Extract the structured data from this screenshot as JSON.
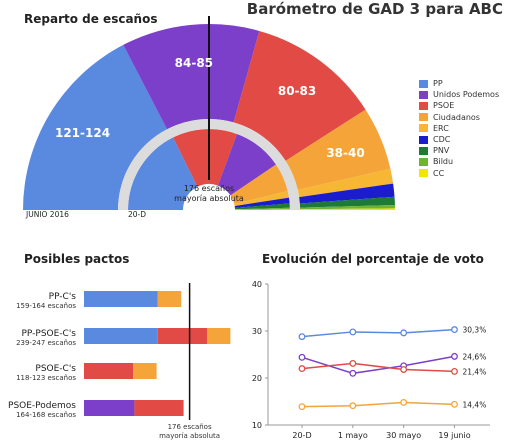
{
  "header": {
    "title": "Barómetro de GAD 3 para ABC"
  },
  "parliament": {
    "section_title": "Reparto de escaños",
    "outer_labels": [
      "121-124",
      "84-85",
      "80-83",
      "38-40"
    ],
    "center_label_line1": "176 escaños",
    "center_label_line2": "mayoría absoluta",
    "inner_left_label": "JUNIO 2016",
    "inner_right_label": "20-D"
  },
  "legend": [
    {
      "label": "PP",
      "color": "#5a89e0"
    },
    {
      "label": "Unidos Podemos",
      "color": "#7b3fc9"
    },
    {
      "label": "PSOE",
      "color": "#e24b45"
    },
    {
      "label": "Ciudadanos",
      "color": "#f5a43a"
    },
    {
      "label": "ERC",
      "color": "#f7b734"
    },
    {
      "label": "CDC",
      "color": "#1c1ccf"
    },
    {
      "label": "PNV",
      "color": "#1d7a37"
    },
    {
      "label": "Bildu",
      "color": "#6eb236"
    },
    {
      "label": "CC",
      "color": "#f2e600"
    }
  ],
  "pacts": {
    "section_title": "Posibles pactos",
    "rows": [
      {
        "name": "PP-C's",
        "seats": "159-164 escaños"
      },
      {
        "name": "PP-PSOE-C's",
        "seats": "239-247 escaños"
      },
      {
        "name": "PSOE-C's",
        "seats": "118-123 escaños"
      },
      {
        "name": "PSOE-Podemos",
        "seats": "164-168 escaños"
      }
    ],
    "majority_line1": "176 escaños",
    "majority_line2": "mayoría absoluta"
  },
  "evolution": {
    "section_title": "Evolución del porcentaje de voto"
  },
  "chart_data": [
    {
      "type": "pie",
      "title": "Reparto de escaños",
      "note": "semicircle parliament chart; outer ring = June 2016, inner ring = 20-D",
      "outer_ring": [
        {
          "party": "PP",
          "seats": 122.5,
          "label": "121-124",
          "color": "#5a89e0"
        },
        {
          "party": "Unidos Podemos",
          "seats": 84.5,
          "label": "84-85",
          "color": "#7b3fc9"
        },
        {
          "party": "PSOE",
          "seats": 81.5,
          "label": "80-83",
          "color": "#e24b45"
        },
        {
          "party": "Ciudadanos",
          "seats": 39,
          "label": "38-40",
          "color": "#f5a43a"
        },
        {
          "party": "ERC",
          "seats": 9,
          "color": "#f7b734"
        },
        {
          "party": "CDC",
          "seats": 8,
          "color": "#1c1ccf"
        },
        {
          "party": "PNV",
          "seats": 5,
          "color": "#1d7a37"
        },
        {
          "party": "Bildu",
          "seats": 2,
          "color": "#6eb236"
        },
        {
          "party": "CC",
          "seats": 1,
          "color": "#f2e600"
        }
      ],
      "inner_ring": [
        {
          "party": "PP",
          "seats": 123,
          "color": "#5a89e0"
        },
        {
          "party": "PSOE",
          "seats": 90,
          "color": "#e24b45"
        },
        {
          "party": "Unidos Podemos",
          "seats": 69,
          "color": "#7b3fc9"
        },
        {
          "party": "Ciudadanos",
          "seats": 40,
          "color": "#f5a43a"
        },
        {
          "party": "ERC",
          "seats": 9,
          "color": "#f7b734"
        },
        {
          "party": "CDC",
          "seats": 8,
          "color": "#1c1ccf"
        },
        {
          "party": "PNV",
          "seats": 6,
          "color": "#1d7a37"
        },
        {
          "party": "Bildu",
          "seats": 2,
          "color": "#6eb236"
        },
        {
          "party": "CC",
          "seats": 1,
          "color": "#f2e600"
        }
      ],
      "total_seats": 350,
      "majority": 176
    },
    {
      "type": "bar",
      "orientation": "horizontal-stacked",
      "title": "Posibles pactos",
      "categories": [
        "PP-C's",
        "PP-PSOE-C's",
        "PSOE-C's",
        "PSOE-Podemos"
      ],
      "segments": [
        [
          {
            "party": "PP",
            "value": 123,
            "color": "#5a89e0"
          },
          {
            "party": "Ciudadanos",
            "value": 39,
            "color": "#f5a43a"
          }
        ],
        [
          {
            "party": "PP",
            "value": 123,
            "color": "#5a89e0"
          },
          {
            "party": "PSOE",
            "value": 82,
            "color": "#e24b45"
          },
          {
            "party": "Ciudadanos",
            "value": 39,
            "color": "#f5a43a"
          }
        ],
        [
          {
            "party": "PSOE",
            "value": 82,
            "color": "#e24b45"
          },
          {
            "party": "Ciudadanos",
            "value": 39,
            "color": "#f5a43a"
          }
        ],
        [
          {
            "party": "Unidos Podemos",
            "value": 84,
            "color": "#7b3fc9"
          },
          {
            "party": "PSOE",
            "value": 82,
            "color": "#e24b45"
          }
        ]
      ],
      "xlim": [
        0,
        250
      ],
      "majority_line": 176
    },
    {
      "type": "line",
      "title": "Evolución del porcentaje de voto",
      "categories": [
        "20-D",
        "1 mayo",
        "30 mayo",
        "19 junio"
      ],
      "yticks": [
        10,
        20,
        30,
        40
      ],
      "ylim": [
        10,
        40
      ],
      "grid": false,
      "series": [
        {
          "party": "PP",
          "values": [
            28.8,
            29.8,
            29.6,
            30.3
          ],
          "color": "#5a89e0",
          "end_label": "30,3%"
        },
        {
          "party": "Unidos Podemos",
          "values": [
            24.4,
            21.0,
            22.6,
            24.6
          ],
          "color": "#7b3fc9",
          "end_label": "24,6%"
        },
        {
          "party": "PSOE",
          "values": [
            22.0,
            23.1,
            21.8,
            21.4
          ],
          "color": "#e24b45",
          "end_label": "21,4%"
        },
        {
          "party": "Ciudadanos",
          "values": [
            13.9,
            14.1,
            14.8,
            14.4
          ],
          "color": "#f5a43a",
          "end_label": "14,4%"
        }
      ]
    }
  ]
}
